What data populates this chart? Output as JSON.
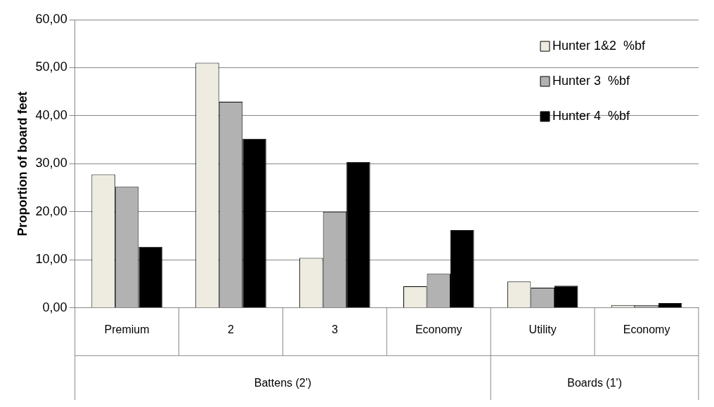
{
  "chart_data": {
    "type": "bar",
    "ylabel": "Proportion of board feet",
    "categories": [
      "Premium",
      "2",
      "3",
      "Economy",
      "Utility",
      "Economy"
    ],
    "annotations": [
      "Battens (2')",
      "Boards (1')"
    ],
    "series": [
      {
        "name": "Hunter 1&2  %bf",
        "color": "#eeece1",
        "values": [
          27.8,
          51.0,
          10.4,
          4.5,
          5.5,
          0.6
        ]
      },
      {
        "name": "Hunter 3  %bf",
        "color": "#b2b2b2",
        "values": [
          25.2,
          42.9,
          20.0,
          7.1,
          4.2,
          0.6
        ]
      },
      {
        "name": "Hunter 4  %bf",
        "color": "#000000",
        "values": [
          12.7,
          35.2,
          30.4,
          16.2,
          4.6,
          1.0
        ]
      }
    ],
    "ylim": [
      0,
      60
    ],
    "yticks": [
      {
        "value": 0,
        "label": "0,00"
      },
      {
        "value": 10,
        "label": "10,00"
      },
      {
        "value": 20,
        "label": "20,00"
      },
      {
        "value": 30,
        "label": "30,00"
      },
      {
        "value": 40,
        "label": "40,00"
      },
      {
        "value": 50,
        "label": "50,00"
      },
      {
        "value": 60,
        "label": "60,00"
      }
    ],
    "grid": "y",
    "legend": "top right"
  }
}
